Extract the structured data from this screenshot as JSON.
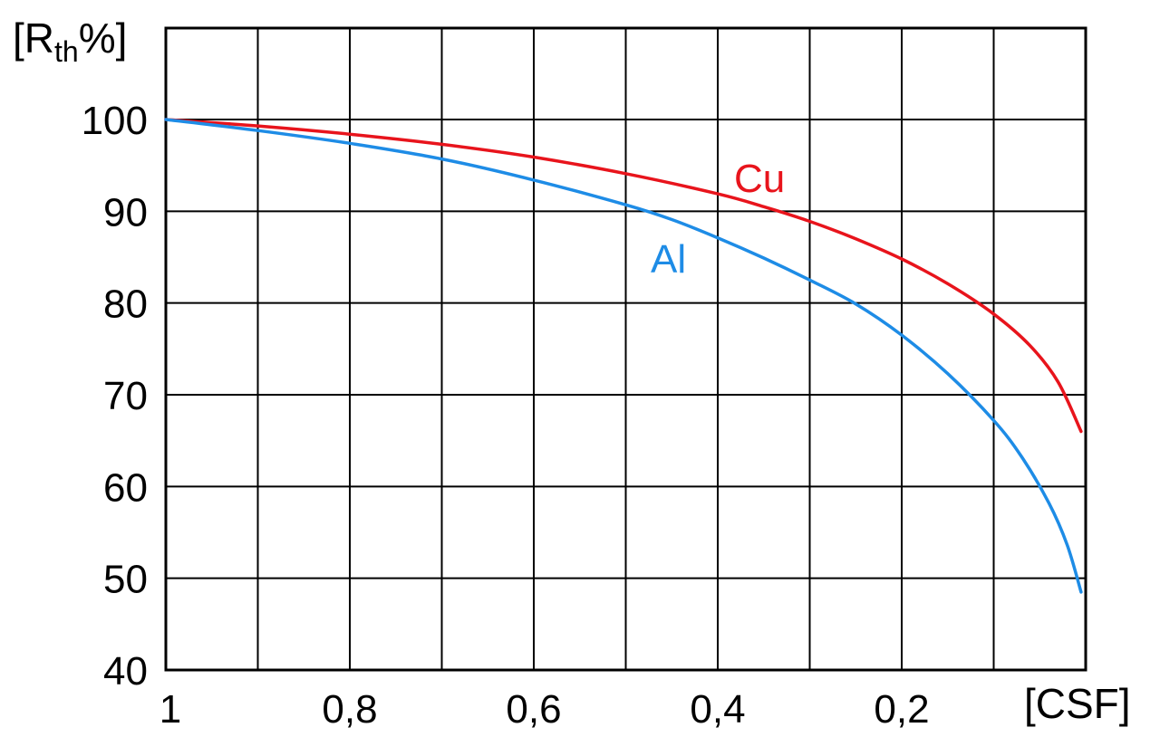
{
  "chart_data": {
    "type": "line",
    "title": "",
    "xlabel": "[CSF]",
    "ylabel_main": "[R",
    "ylabel_sub": "th",
    "ylabel_tail": "%]",
    "xlim": [
      1,
      0
    ],
    "ylim": [
      40,
      100
    ],
    "x_reversed": true,
    "grid": true,
    "x_ticks": [
      {
        "value": 1.0,
        "label": "1"
      },
      {
        "value": 0.8,
        "label": "0,8"
      },
      {
        "value": 0.6,
        "label": "0,6"
      },
      {
        "value": 0.4,
        "label": "0,4"
      },
      {
        "value": 0.2,
        "label": "0,2"
      }
    ],
    "x_grid": [
      1.0,
      0.9,
      0.8,
      0.7,
      0.6,
      0.5,
      0.4,
      0.3,
      0.2,
      0.1,
      0.0
    ],
    "y_ticks": [
      {
        "value": 100,
        "label": "100"
      },
      {
        "value": 90,
        "label": "90"
      },
      {
        "value": 80,
        "label": "80"
      },
      {
        "value": 70,
        "label": "70"
      },
      {
        "value": 60,
        "label": "60"
      },
      {
        "value": 50,
        "label": "50"
      },
      {
        "value": 40,
        "label": "40"
      }
    ],
    "y_grid": [
      100,
      90,
      80,
      70,
      60,
      50,
      40
    ],
    "series": [
      {
        "name": "Cu",
        "color": "#e8141c",
        "x": [
          1.0,
          0.9,
          0.8,
          0.7,
          0.6,
          0.5,
          0.4,
          0.35,
          0.3,
          0.25,
          0.2,
          0.15,
          0.1,
          0.06,
          0.03,
          0.005
        ],
        "y": [
          100,
          99.3,
          98.4,
          97.3,
          95.9,
          94.1,
          91.9,
          90.5,
          88.9,
          87.0,
          84.8,
          82.1,
          78.8,
          75.3,
          71.4,
          66.0
        ]
      },
      {
        "name": "Al",
        "color": "#1e8ce6",
        "x": [
          1.0,
          0.9,
          0.8,
          0.7,
          0.6,
          0.5,
          0.45,
          0.4,
          0.35,
          0.3,
          0.25,
          0.2,
          0.15,
          0.1,
          0.07,
          0.04,
          0.02,
          0.005
        ],
        "y": [
          100,
          98.8,
          97.4,
          95.7,
          93.4,
          90.7,
          89.1,
          87.1,
          84.9,
          82.5,
          79.9,
          76.5,
          72.3,
          67.2,
          63.3,
          58.2,
          53.6,
          48.5
        ]
      }
    ]
  }
}
